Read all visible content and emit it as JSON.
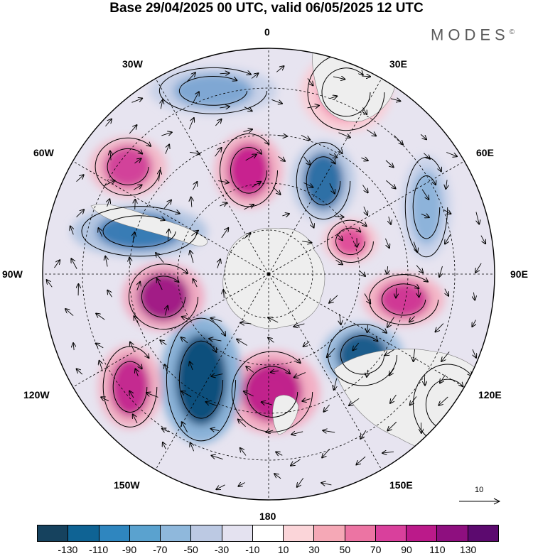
{
  "title": "Base 29/04/2025 00 UTC, valid 06/05/2025 12 UTC",
  "brand": {
    "name": "MODES",
    "mark": "©"
  },
  "longitude_labels": {
    "lon_0": "0",
    "lon_30e": "30E",
    "lon_60e": "60E",
    "lon_90e": "90E",
    "lon_120e": "120E",
    "lon_150e": "150E",
    "lon_180": "180",
    "lon_150w": "150W",
    "lon_120w": "120W",
    "lon_90w": "90W",
    "lon_60w": "60W",
    "lon_30w": "30W"
  },
  "reference_vector": {
    "label": "10"
  },
  "colorbar": {
    "colors": [
      "#16425e",
      "#0f6394",
      "#2f86bf",
      "#5aa2cf",
      "#8fb8dc",
      "#bcc9e3",
      "#e4e2f0",
      "#ffffff",
      "#fbd5d9",
      "#f5a8b6",
      "#ec74a3",
      "#d9409c",
      "#bb1a8a",
      "#8e0f7f",
      "#5c0a6f"
    ],
    "tick_labels": [
      "-130",
      "-110",
      "-90",
      "-70",
      "-50",
      "-30",
      "-10",
      "10",
      "30",
      "50",
      "70",
      "90",
      "110",
      "130"
    ]
  },
  "map": {
    "projection": "south-polar-stereographic",
    "background_anomaly_color": "#e7e4f0",
    "land_color": "#eeeeee",
    "anomaly_centers": [
      {
        "color": "#c8238f",
        "halo": "#f3b3c6",
        "rx": 30,
        "ry": 38
      },
      {
        "color": "#2f6fa6",
        "halo": "#b9c9e3",
        "rx": 28,
        "ry": 40
      },
      {
        "color": "#e04f9a",
        "halo": "#f6c4d0",
        "rx": 24,
        "ry": 22
      },
      {
        "color": "#cf3a95",
        "halo": "#f4b5c6",
        "rx": 36,
        "ry": 26
      },
      {
        "color": "#1d5d8c",
        "halo": "#9fbedf",
        "rx": 36,
        "ry": 32
      },
      {
        "color": "#c0208c",
        "halo": "#f3afc4",
        "rx": 42,
        "ry": 42
      },
      {
        "color": "#0f4f7c",
        "halo": "#8ab2d8",
        "rx": 36,
        "ry": 64
      },
      {
        "color": "#c42a90",
        "halo": "#f2b2c5",
        "rx": 28,
        "ry": 42
      },
      {
        "color": "#a21a86",
        "halo": "#f0aac2",
        "rx": 36,
        "ry": 34
      },
      {
        "color": "#3a7cb5",
        "halo": "#b3c6e2",
        "rx": 60,
        "ry": 26
      },
      {
        "color": "#d2449a",
        "halo": "#f3b9c9",
        "rx": 34,
        "ry": 30
      },
      {
        "color": "#7fa7d3",
        "halo": "#c7d1e8",
        "rx": 56,
        "ry": 24
      },
      {
        "color": "#f08db0",
        "halo": "#f9cdd6",
        "rx": 40,
        "ry": 40
      },
      {
        "color": "#8db3da",
        "halo": "#c9d3ea",
        "rx": 22,
        "ry": 52
      },
      {
        "color": "#e9a0b8",
        "halo": "#f7d3dc",
        "rx": 36,
        "ry": 42
      }
    ]
  }
}
